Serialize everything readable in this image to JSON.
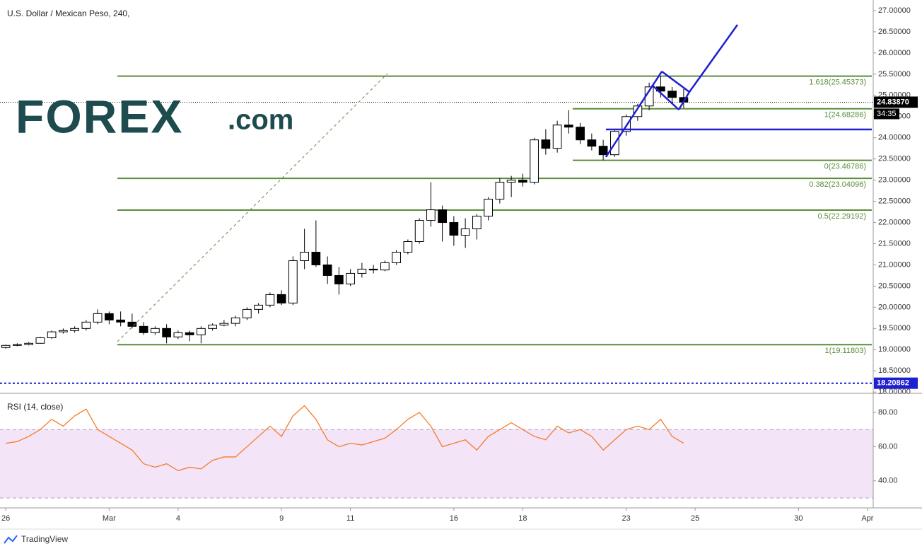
{
  "chart_data": [
    {
      "type": "candlestick",
      "title": "U.S. Dollar / Mexican Peso, 240,",
      "x": [
        0,
        2,
        4,
        6,
        8,
        10,
        12,
        14,
        16,
        18,
        20,
        22,
        24,
        26,
        28,
        30,
        32,
        34,
        36,
        38,
        40,
        42,
        44,
        46,
        48,
        50,
        52,
        54,
        56,
        58,
        60,
        62,
        64,
        66,
        68,
        70,
        72,
        74,
        76,
        78,
        80,
        82,
        84,
        86,
        88,
        90,
        92,
        94,
        96,
        98,
        100,
        102,
        104,
        106,
        108,
        110,
        112,
        114,
        116,
        118
      ],
      "open": [
        19.05,
        19.1,
        19.12,
        19.15,
        19.28,
        19.42,
        19.45,
        19.5,
        19.65,
        19.85,
        19.7,
        19.65,
        19.55,
        19.4,
        19.5,
        19.3,
        19.4,
        19.35,
        19.5,
        19.58,
        19.62,
        19.75,
        19.95,
        20.05,
        20.3,
        20.1,
        21.1,
        21.3,
        21.0,
        20.75,
        20.55,
        20.8,
        20.9,
        20.88,
        21.05,
        21.3,
        21.55,
        22.05,
        22.3,
        22.0,
        21.7,
        21.85,
        22.15,
        22.55,
        22.95,
        23.0,
        22.95,
        23.95,
        23.75,
        24.3,
        24.25,
        23.95,
        23.8,
        23.6,
        24.15,
        24.5,
        24.75,
        25.2,
        25.1,
        24.95
      ],
      "high": [
        19.12,
        19.15,
        19.18,
        19.3,
        19.45,
        19.5,
        19.55,
        19.7,
        19.95,
        19.9,
        19.9,
        19.85,
        19.65,
        19.55,
        19.6,
        19.45,
        19.45,
        19.55,
        19.62,
        19.7,
        19.8,
        20.0,
        20.1,
        20.35,
        20.4,
        21.2,
        21.85,
        22.05,
        21.2,
        20.95,
        20.9,
        21.05,
        21.0,
        21.1,
        21.35,
        21.6,
        22.1,
        22.95,
        22.4,
        22.15,
        22.1,
        22.2,
        22.6,
        23.05,
        23.1,
        23.15,
        24.0,
        24.2,
        24.4,
        24.65,
        24.35,
        24.1,
        23.95,
        24.2,
        24.55,
        24.8,
        25.3,
        25.46,
        25.2,
        25.15
      ],
      "low": [
        19.02,
        19.08,
        19.1,
        19.14,
        19.25,
        19.38,
        19.4,
        19.45,
        19.6,
        19.6,
        19.55,
        19.5,
        19.35,
        19.35,
        19.15,
        19.25,
        19.2,
        19.15,
        19.45,
        19.55,
        19.55,
        19.7,
        19.85,
        20.0,
        20.05,
        20.05,
        20.9,
        20.95,
        20.55,
        20.3,
        20.5,
        20.7,
        20.8,
        20.85,
        21.0,
        21.25,
        21.5,
        21.9,
        21.55,
        21.45,
        21.4,
        21.6,
        22.05,
        22.45,
        22.6,
        22.85,
        22.9,
        23.6,
        23.65,
        24.1,
        23.85,
        23.7,
        23.47,
        23.55,
        24.05,
        24.4,
        24.65,
        24.95,
        24.8,
        24.7
      ],
      "close": [
        19.1,
        19.12,
        19.15,
        19.28,
        19.42,
        19.45,
        19.5,
        19.65,
        19.85,
        19.7,
        19.65,
        19.55,
        19.4,
        19.5,
        19.3,
        19.4,
        19.35,
        19.5,
        19.58,
        19.62,
        19.75,
        19.95,
        20.05,
        20.3,
        20.1,
        21.1,
        21.3,
        21.0,
        20.75,
        20.55,
        20.8,
        20.9,
        20.88,
        21.05,
        21.3,
        21.55,
        22.05,
        22.3,
        22.0,
        21.7,
        21.85,
        22.15,
        22.55,
        22.95,
        23.0,
        22.95,
        23.95,
        23.75,
        24.3,
        24.25,
        23.95,
        23.8,
        23.6,
        24.15,
        24.5,
        24.75,
        25.2,
        25.1,
        24.95,
        24.84
      ],
      "up_color": "#ffffff",
      "down_color": "#000000",
      "wick_color": "#000000",
      "xlim": [
        -1,
        151
      ],
      "xticks": [
        {
          "value": 0,
          "label": "26"
        },
        {
          "value": 18,
          "label": "Mar"
        },
        {
          "value": 30,
          "label": "4"
        },
        {
          "value": 48,
          "label": "9"
        },
        {
          "value": 60,
          "label": "11"
        },
        {
          "value": 78,
          "label": "16"
        },
        {
          "value": 90,
          "label": "18"
        },
        {
          "value": 108,
          "label": "23"
        },
        {
          "value": 120,
          "label": "25"
        },
        {
          "value": 138,
          "label": "30"
        },
        {
          "value": 150,
          "label": "Apr"
        }
      ],
      "ylim": [
        17.97,
        27.25
      ],
      "yticks": [
        {
          "value": 18,
          "label": "18.00000"
        },
        {
          "value": 18.5,
          "label": "18.50000"
        },
        {
          "value": 19,
          "label": "19.00000"
        },
        {
          "value": 19.5,
          "label": "19.50000"
        },
        {
          "value": 20,
          "label": "20.00000"
        },
        {
          "value": 20.5,
          "label": "20.50000"
        },
        {
          "value": 21,
          "label": "21.00000"
        },
        {
          "value": 21.5,
          "label": "21.50000"
        },
        {
          "value": 22,
          "label": "22.00000"
        },
        {
          "value": 22.5,
          "label": "22.50000"
        },
        {
          "value": 23,
          "label": "23.00000"
        },
        {
          "value": 23.5,
          "label": "23.50000"
        },
        {
          "value": 24,
          "label": "24.00000"
        },
        {
          "value": 24.5,
          "label": "24.50000"
        },
        {
          "value": 25,
          "label": "25.00000"
        },
        {
          "value": 25.5,
          "label": "25.50000"
        },
        {
          "value": 26,
          "label": "26.00000"
        },
        {
          "value": 26.5,
          "label": "26.50000"
        },
        {
          "value": 27,
          "label": "27.00000"
        }
      ],
      "fib_color": "#5b8c3a",
      "fib_levels": [
        {
          "value": 25.45373,
          "label": "1.618(25.45373)"
        },
        {
          "value": 24.68286,
          "label": "1(24.68286)"
        },
        {
          "value": 23.46786,
          "label": "0(23.46786)"
        },
        {
          "value": 23.04096,
          "label": "0.382(23.04096)"
        },
        {
          "value": 22.29192,
          "label": "0.5(22.29192)"
        },
        {
          "value": 19.11803,
          "label": "1(19.11803)"
        }
      ],
      "last_price": {
        "value": 24.8387,
        "label": "24.83870",
        "countdown": "34:35"
      },
      "marked_level": {
        "value": 18.20862,
        "label": "18.20862",
        "color": "#1e1ed2"
      },
      "logo": {
        "brand": "FOREX",
        "suffix": ".com"
      },
      "footer": "TradingView"
    },
    {
      "type": "line",
      "title": "RSI (14, close)",
      "color": "#f57c2a",
      "values": [
        62,
        63,
        66,
        70,
        76,
        72,
        78,
        82,
        70,
        66,
        62,
        58,
        50,
        48,
        50,
        46,
        48,
        47,
        52,
        54,
        54,
        60,
        66,
        72,
        66,
        78,
        84,
        76,
        64,
        60,
        62,
        61,
        63,
        65,
        70,
        76,
        80,
        72,
        60,
        62,
        64,
        58,
        66,
        70,
        74,
        70,
        66,
        64,
        72,
        68,
        70,
        66,
        58,
        64,
        70,
        72,
        70,
        76,
        66,
        62
      ],
      "ylim": [
        24.6,
        90.8
      ],
      "yticks": [
        {
          "value": 40,
          "label": "40.00"
        },
        {
          "value": 60,
          "label": "60.00"
        },
        {
          "value": 80,
          "label": "80.00"
        }
      ],
      "band": [
        30,
        70
      ],
      "band_color": "#f3e4f8"
    }
  ]
}
